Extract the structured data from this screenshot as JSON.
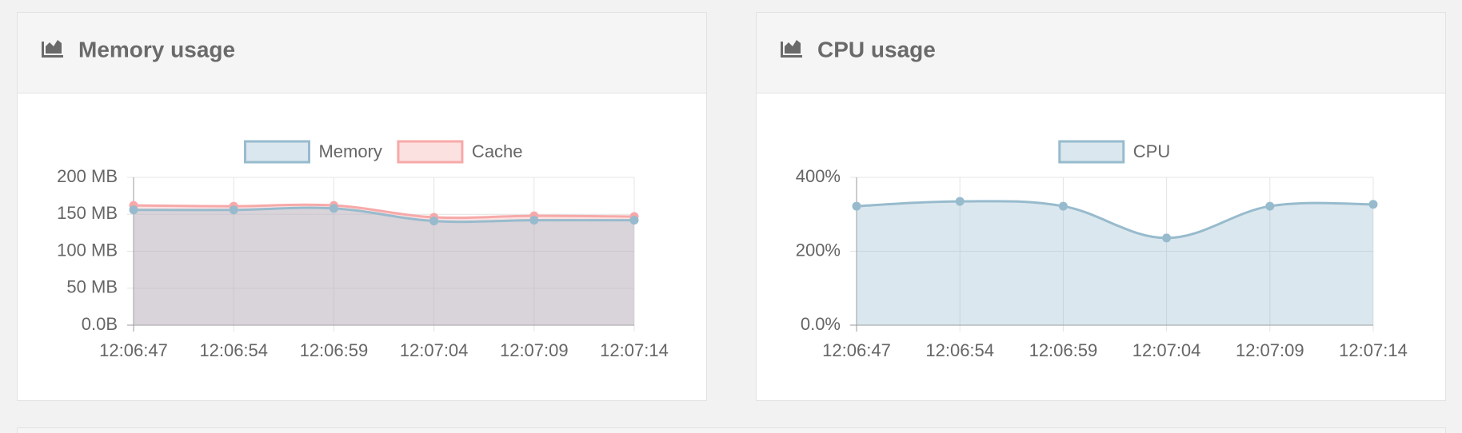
{
  "chart_data": [
    {
      "type": "line",
      "title": "Memory usage",
      "categories": [
        "12:06:47",
        "12:06:54",
        "12:06:59",
        "12:07:04",
        "12:07:09",
        "12:07:14"
      ],
      "series": [
        {
          "name": "Memory",
          "color": "#97bbcd",
          "values": [
            156,
            156,
            158,
            141,
            142,
            142
          ]
        },
        {
          "name": "Cache",
          "color": "#f7a9a9",
          "values": [
            162,
            161,
            162,
            146,
            148,
            147
          ]
        }
      ],
      "ylim": [
        0,
        200
      ],
      "yticks": [
        {
          "value": 0,
          "label": "0.0B"
        },
        {
          "value": 50,
          "label": "50 MB"
        },
        {
          "value": 100,
          "label": "100 MB"
        },
        {
          "value": 150,
          "label": "150 MB"
        },
        {
          "value": 200,
          "label": "200 MB"
        }
      ],
      "grid": true
    },
    {
      "type": "line",
      "title": "CPU usage",
      "categories": [
        "12:06:47",
        "12:06:54",
        "12:06:59",
        "12:07:04",
        "12:07:09",
        "12:07:14"
      ],
      "series": [
        {
          "name": "CPU",
          "color": "#97bbcd",
          "values": [
            322,
            335,
            322,
            236,
            322,
            327
          ]
        }
      ],
      "ylim": [
        0,
        400
      ],
      "yticks": [
        {
          "value": 0,
          "label": "0.0%"
        },
        {
          "value": 200,
          "label": "200%"
        },
        {
          "value": 400,
          "label": "400%"
        }
      ],
      "grid": true
    }
  ]
}
